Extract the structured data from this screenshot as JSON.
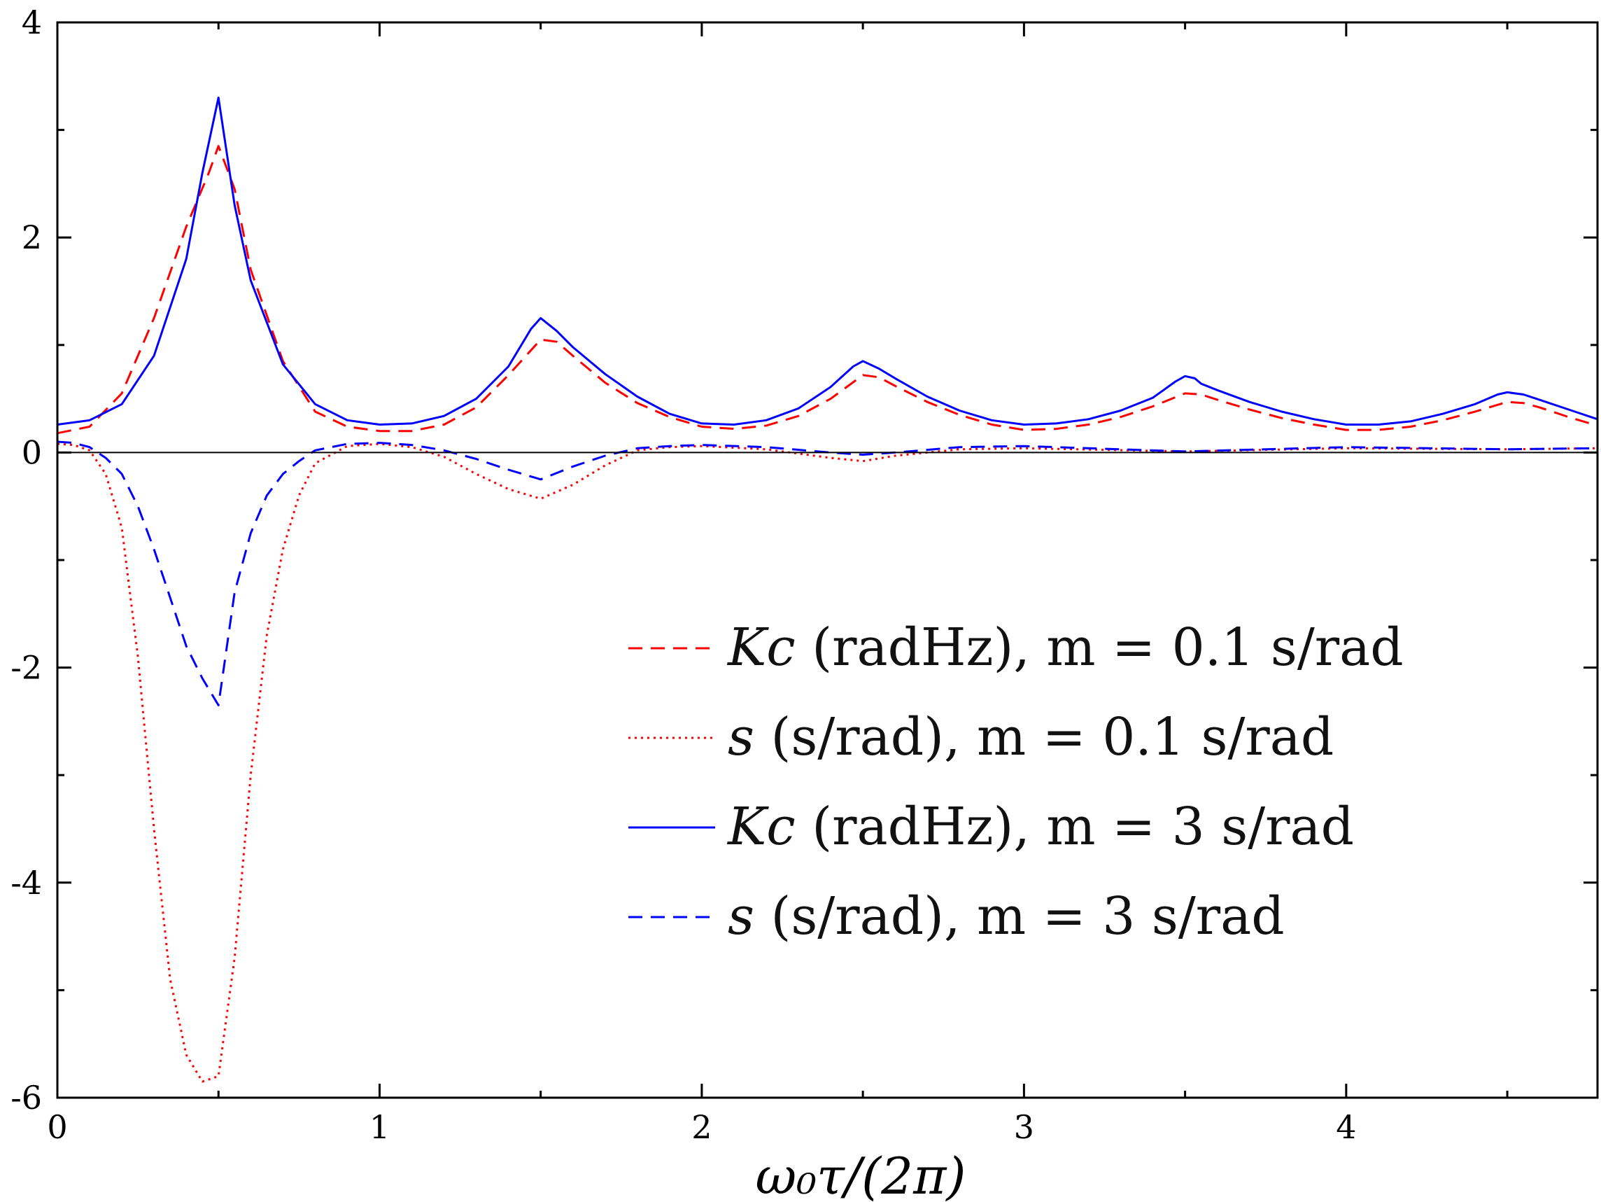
{
  "chart_data": {
    "type": "line",
    "title": "",
    "xlabel": "ω₀τ/(2π)",
    "ylabel": "",
    "xlim": [
      0,
      4.78
    ],
    "ylim": [
      -6,
      4
    ],
    "xticks": [
      0,
      1,
      2,
      3,
      4
    ],
    "xtick_labels": [
      "0",
      "1",
      "2",
      "3",
      "4"
    ],
    "yticks": [
      -6,
      -4,
      -2,
      0,
      2,
      4
    ],
    "ytick_labels": [
      "-6",
      "-4",
      "-2",
      "0",
      "2",
      "4"
    ],
    "zero_line": true,
    "grid": false,
    "legend_position": "center-right",
    "series": [
      {
        "name": "Kc (radHz), m = 0.1 s/rad",
        "color": "#ff0000",
        "style": "dashed",
        "x": [
          0,
          0.1,
          0.2,
          0.3,
          0.4,
          0.47,
          0.5,
          0.55,
          0.6,
          0.7,
          0.8,
          0.9,
          1.0,
          1.1,
          1.2,
          1.3,
          1.4,
          1.5,
          1.55,
          1.6,
          1.7,
          1.8,
          1.9,
          2.0,
          2.1,
          2.2,
          2.3,
          2.4,
          2.5,
          2.55,
          2.6,
          2.7,
          2.8,
          2.9,
          3.0,
          3.1,
          3.2,
          3.3,
          3.4,
          3.5,
          3.55,
          3.6,
          3.7,
          3.8,
          3.9,
          4.0,
          4.1,
          4.2,
          4.3,
          4.4,
          4.5,
          4.55,
          4.6,
          4.7,
          4.78
        ],
        "y": [
          0.18,
          0.24,
          0.55,
          1.25,
          2.1,
          2.6,
          2.85,
          2.45,
          1.7,
          0.85,
          0.38,
          0.24,
          0.2,
          0.2,
          0.26,
          0.42,
          0.72,
          1.05,
          1.03,
          0.9,
          0.65,
          0.46,
          0.33,
          0.24,
          0.22,
          0.25,
          0.34,
          0.5,
          0.72,
          0.7,
          0.62,
          0.47,
          0.35,
          0.26,
          0.21,
          0.22,
          0.26,
          0.33,
          0.43,
          0.55,
          0.54,
          0.49,
          0.4,
          0.32,
          0.26,
          0.21,
          0.21,
          0.24,
          0.3,
          0.38,
          0.47,
          0.46,
          0.42,
          0.32,
          0.25
        ]
      },
      {
        "name": "s (s/rad), m = 0.1 s/rad",
        "color": "#ff0000",
        "style": "dotted",
        "x": [
          0,
          0.05,
          0.1,
          0.15,
          0.2,
          0.25,
          0.3,
          0.35,
          0.4,
          0.45,
          0.5,
          0.55,
          0.6,
          0.65,
          0.7,
          0.75,
          0.8,
          0.9,
          1.0,
          1.1,
          1.2,
          1.3,
          1.4,
          1.5,
          1.6,
          1.7,
          1.8,
          1.9,
          2.0,
          2.2,
          2.4,
          2.5,
          2.6,
          2.8,
          3.0,
          3.5,
          4.0,
          4.5,
          4.78
        ],
        "y": [
          0.08,
          0.07,
          0.02,
          -0.2,
          -0.7,
          -1.9,
          -3.5,
          -4.9,
          -5.6,
          -5.85,
          -5.8,
          -4.7,
          -3.0,
          -1.7,
          -0.9,
          -0.4,
          -0.1,
          0.06,
          0.08,
          0.05,
          -0.04,
          -0.2,
          -0.34,
          -0.43,
          -0.3,
          -0.12,
          0.02,
          0.05,
          0.06,
          0.03,
          -0.05,
          -0.08,
          -0.03,
          0.03,
          0.04,
          0.01,
          0.04,
          0.03,
          0.04
        ]
      },
      {
        "name": "Kc (radHz), m = 3 s/rad",
        "color": "#0000ff",
        "style": "solid",
        "x": [
          0,
          0.1,
          0.2,
          0.3,
          0.4,
          0.45,
          0.5,
          0.55,
          0.6,
          0.7,
          0.8,
          0.9,
          1.0,
          1.1,
          1.2,
          1.3,
          1.4,
          1.47,
          1.5,
          1.55,
          1.6,
          1.7,
          1.8,
          1.9,
          2.0,
          2.1,
          2.2,
          2.3,
          2.4,
          2.47,
          2.5,
          2.55,
          2.6,
          2.7,
          2.8,
          2.9,
          3.0,
          3.1,
          3.2,
          3.3,
          3.4,
          3.47,
          3.5,
          3.53,
          3.55,
          3.6,
          3.7,
          3.8,
          3.9,
          4.0,
          4.1,
          4.2,
          4.3,
          4.4,
          4.47,
          4.5,
          4.55,
          4.6,
          4.7,
          4.78
        ],
        "y": [
          0.26,
          0.3,
          0.45,
          0.9,
          1.8,
          2.6,
          3.3,
          2.3,
          1.6,
          0.82,
          0.45,
          0.3,
          0.26,
          0.27,
          0.34,
          0.5,
          0.8,
          1.15,
          1.25,
          1.13,
          0.98,
          0.73,
          0.52,
          0.36,
          0.27,
          0.26,
          0.3,
          0.41,
          0.61,
          0.8,
          0.85,
          0.78,
          0.69,
          0.52,
          0.39,
          0.3,
          0.26,
          0.27,
          0.31,
          0.39,
          0.51,
          0.66,
          0.71,
          0.69,
          0.64,
          0.58,
          0.47,
          0.38,
          0.31,
          0.26,
          0.26,
          0.29,
          0.36,
          0.45,
          0.54,
          0.56,
          0.54,
          0.49,
          0.39,
          0.31
        ]
      },
      {
        "name": "s (s/rad), m = 3 s/rad",
        "color": "#0000ff",
        "style": "dashed",
        "x": [
          0,
          0.05,
          0.1,
          0.15,
          0.2,
          0.25,
          0.3,
          0.35,
          0.4,
          0.45,
          0.5,
          0.55,
          0.6,
          0.65,
          0.7,
          0.75,
          0.8,
          0.9,
          1.0,
          1.1,
          1.2,
          1.3,
          1.4,
          1.5,
          1.6,
          1.7,
          1.8,
          1.9,
          2.0,
          2.2,
          2.4,
          2.5,
          2.6,
          2.8,
          3.0,
          3.5,
          4.0,
          4.5,
          4.78
        ],
        "y": [
          0.1,
          0.09,
          0.05,
          -0.05,
          -0.2,
          -0.5,
          -0.9,
          -1.35,
          -1.8,
          -2.1,
          -2.35,
          -1.3,
          -0.75,
          -0.4,
          -0.2,
          -0.08,
          0.02,
          0.08,
          0.09,
          0.07,
          0.02,
          -0.06,
          -0.16,
          -0.25,
          -0.13,
          -0.03,
          0.04,
          0.06,
          0.07,
          0.05,
          0.0,
          -0.02,
          0.0,
          0.05,
          0.06,
          0.01,
          0.05,
          0.03,
          0.04
        ]
      }
    ]
  },
  "legend": {
    "entries": [
      {
        "symbol": "Kc",
        "text": "(radHz), m = 0.1 s/rad"
      },
      {
        "symbol": "s",
        "text": "(s/rad), m = 0.1 s/rad"
      },
      {
        "symbol": "Kc",
        "text": "(radHz), m = 3 s/rad"
      },
      {
        "symbol": "s",
        "text": "(s/rad), m = 3 s/rad"
      }
    ]
  }
}
